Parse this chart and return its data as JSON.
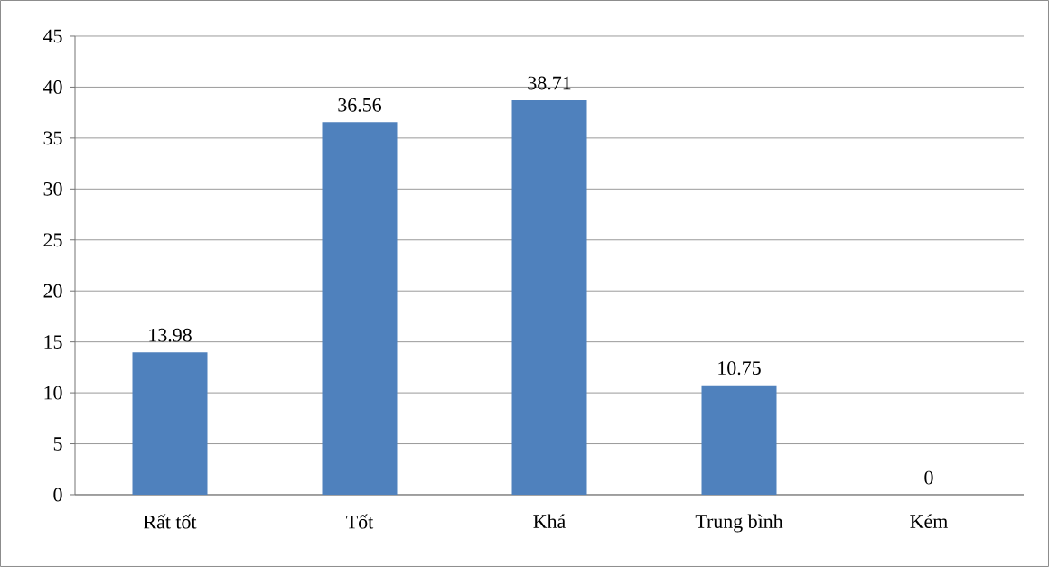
{
  "chart_data": {
    "type": "bar",
    "categories": [
      "Rất tốt",
      "Tốt",
      "Khá",
      "Trung bình",
      "Kém"
    ],
    "values": [
      13.98,
      36.56,
      38.71,
      10.75,
      0
    ],
    "color": "#4f81bd",
    "ylim": [
      0,
      45
    ],
    "yticks": [
      0,
      5,
      10,
      15,
      20,
      25,
      30,
      35,
      40,
      45
    ],
    "grid": "y",
    "data_labels": true
  }
}
